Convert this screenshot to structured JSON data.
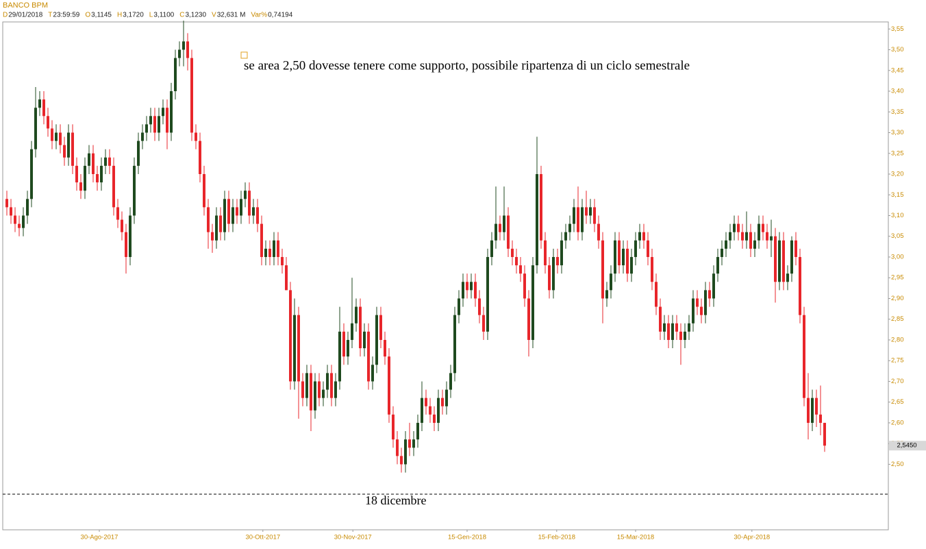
{
  "chart_data": {
    "type": "candlestick",
    "header": {
      "name": "BANCO BPM",
      "fields": [
        {
          "label": "D",
          "value": "29/01/2018"
        },
        {
          "label": "T",
          "value": "23:59:59"
        },
        {
          "label": "O",
          "value": "3,1145"
        },
        {
          "label": "H",
          "value": "3,1720"
        },
        {
          "label": "L",
          "value": "3,1100"
        },
        {
          "label": "C",
          "value": "3,1230"
        },
        {
          "label": "V",
          "value": "32,631 M"
        },
        {
          "label": "Var%",
          "value": "0,74194"
        }
      ]
    },
    "annotations": {
      "note": "se area 2,50 dovesse tenere come supporto, possibile ripartenza di un ciclo semestrale",
      "support": "18 dicembre"
    },
    "support_level": 2.428,
    "last_price": {
      "value": 2.545,
      "label": "2,5450"
    },
    "up_color": "#1f4a1f",
    "down_color": "#e8262b",
    "xlim": [
      -1,
      214.5
    ],
    "xticks": [
      {
        "value": 22.5,
        "label": "30-Ago-2017"
      },
      {
        "value": 62.3,
        "label": "30-Ott-2017"
      },
      {
        "value": 84.2,
        "label": "30-Nov-2017"
      },
      {
        "value": 112,
        "label": "15-Gen-2018"
      },
      {
        "value": 133.8,
        "label": "15-Feb-2018"
      },
      {
        "value": 153,
        "label": "15-Mar-2018"
      },
      {
        "value": 181.3,
        "label": "30-Apr-2018"
      }
    ],
    "ylim": [
      2.342,
      3.567
    ],
    "yticks": [
      {
        "value": 2.5,
        "label": "2,50"
      },
      {
        "value": 2.55,
        "label": "2,55"
      },
      {
        "value": 2.6,
        "label": "2,60"
      },
      {
        "value": 2.65,
        "label": "2,65"
      },
      {
        "value": 2.7,
        "label": "2,70"
      },
      {
        "value": 2.75,
        "label": "2,75"
      },
      {
        "value": 2.8,
        "label": "2,80"
      },
      {
        "value": 2.85,
        "label": "2,85"
      },
      {
        "value": 2.9,
        "label": "2,90"
      },
      {
        "value": 2.95,
        "label": "2,95"
      },
      {
        "value": 3.0,
        "label": "3,00"
      },
      {
        "value": 3.05,
        "label": "3,05"
      },
      {
        "value": 3.1,
        "label": "3,10"
      },
      {
        "value": 3.15,
        "label": "3,15"
      },
      {
        "value": 3.2,
        "label": "3,20"
      },
      {
        "value": 3.25,
        "label": "3,25"
      },
      {
        "value": 3.3,
        "label": "3,30"
      },
      {
        "value": 3.35,
        "label": "3,35"
      },
      {
        "value": 3.4,
        "label": "3,40"
      },
      {
        "value": 3.45,
        "label": "3,45"
      },
      {
        "value": 3.5,
        "label": "3,50"
      },
      {
        "value": 3.55,
        "label": "3,55"
      }
    ],
    "candles": [
      [
        3.14,
        3.16,
        3.1,
        3.12
      ],
      [
        3.12,
        3.14,
        3.08,
        3.1
      ],
      [
        3.1,
        3.12,
        3.06,
        3.08
      ],
      [
        3.08,
        3.1,
        3.05,
        3.07
      ],
      [
        3.07,
        3.12,
        3.05,
        3.1
      ],
      [
        3.1,
        3.16,
        3.08,
        3.14
      ],
      [
        3.14,
        3.28,
        3.12,
        3.26
      ],
      [
        3.26,
        3.41,
        3.24,
        3.36
      ],
      [
        3.36,
        3.4,
        3.34,
        3.38
      ],
      [
        3.38,
        3.4,
        3.32,
        3.34
      ],
      [
        3.34,
        3.36,
        3.29,
        3.31
      ],
      [
        3.31,
        3.33,
        3.26,
        3.28
      ],
      [
        3.28,
        3.32,
        3.26,
        3.3
      ],
      [
        3.3,
        3.32,
        3.25,
        3.27
      ],
      [
        3.27,
        3.29,
        3.22,
        3.24
      ],
      [
        3.24,
        3.32,
        3.22,
        3.3
      ],
      [
        3.3,
        3.32,
        3.2,
        3.22
      ],
      [
        3.22,
        3.24,
        3.16,
        3.18
      ],
      [
        3.18,
        3.2,
        3.14,
        3.16
      ],
      [
        3.16,
        3.24,
        3.14,
        3.22
      ],
      [
        3.22,
        3.27,
        3.2,
        3.25
      ],
      [
        3.25,
        3.27,
        3.18,
        3.2
      ],
      [
        3.2,
        3.22,
        3.16,
        3.18
      ],
      [
        3.18,
        3.24,
        3.16,
        3.22
      ],
      [
        3.22,
        3.26,
        3.2,
        3.24
      ],
      [
        3.24,
        3.26,
        3.2,
        3.22
      ],
      [
        3.22,
        3.24,
        3.1,
        3.12
      ],
      [
        3.12,
        3.14,
        3.07,
        3.09
      ],
      [
        3.09,
        3.11,
        3.04,
        3.06
      ],
      [
        3.06,
        3.08,
        2.96,
        3.0
      ],
      [
        3.0,
        3.12,
        2.98,
        3.1
      ],
      [
        3.1,
        3.24,
        3.08,
        3.22
      ],
      [
        3.22,
        3.3,
        3.2,
        3.28
      ],
      [
        3.28,
        3.32,
        3.26,
        3.3
      ],
      [
        3.3,
        3.34,
        3.28,
        3.32
      ],
      [
        3.32,
        3.36,
        3.3,
        3.34
      ],
      [
        3.34,
        3.36,
        3.28,
        3.3
      ],
      [
        3.3,
        3.36,
        3.28,
        3.34
      ],
      [
        3.34,
        3.38,
        3.32,
        3.36
      ],
      [
        3.36,
        3.38,
        3.26,
        3.3
      ],
      [
        3.3,
        3.42,
        3.28,
        3.4
      ],
      [
        3.4,
        3.5,
        3.38,
        3.48
      ],
      [
        3.48,
        3.52,
        3.46,
        3.5
      ],
      [
        3.5,
        3.57,
        3.46,
        3.52
      ],
      [
        3.52,
        3.54,
        3.45,
        3.48
      ],
      [
        3.48,
        3.5,
        3.28,
        3.3
      ],
      [
        3.3,
        3.32,
        3.26,
        3.28
      ],
      [
        3.28,
        3.3,
        3.18,
        3.2
      ],
      [
        3.2,
        3.22,
        3.1,
        3.12
      ],
      [
        3.12,
        3.14,
        3.02,
        3.06
      ],
      [
        3.06,
        3.08,
        3.01,
        3.04
      ],
      [
        3.04,
        3.12,
        3.02,
        3.1
      ],
      [
        3.1,
        3.12,
        3.04,
        3.06
      ],
      [
        3.06,
        3.16,
        3.04,
        3.14
      ],
      [
        3.14,
        3.16,
        3.06,
        3.08
      ],
      [
        3.08,
        3.14,
        3.06,
        3.12
      ],
      [
        3.12,
        3.14,
        3.08,
        3.1
      ],
      [
        3.1,
        3.16,
        3.08,
        3.14
      ],
      [
        3.14,
        3.18,
        3.12,
        3.16
      ],
      [
        3.16,
        3.18,
        3.08,
        3.1
      ],
      [
        3.1,
        3.14,
        3.08,
        3.12
      ],
      [
        3.12,
        3.14,
        3.06,
        3.08
      ],
      [
        3.08,
        3.1,
        2.98,
        3.0
      ],
      [
        3.0,
        3.04,
        2.98,
        3.02
      ],
      [
        3.02,
        3.04,
        2.98,
        3.0
      ],
      [
        3.0,
        3.06,
        2.98,
        3.04
      ],
      [
        3.04,
        3.06,
        2.98,
        3.0
      ],
      [
        3.0,
        3.02,
        2.96,
        2.98
      ],
      [
        2.98,
        3.0,
        2.92,
        2.92
      ],
      [
        2.92,
        2.94,
        2.68,
        2.7
      ],
      [
        2.7,
        2.9,
        2.68,
        2.86
      ],
      [
        2.86,
        2.88,
        2.61,
        2.7
      ],
      [
        2.7,
        2.72,
        2.64,
        2.66
      ],
      [
        2.66,
        2.74,
        2.64,
        2.72
      ],
      [
        2.72,
        2.74,
        2.58,
        2.63
      ],
      [
        2.63,
        2.72,
        2.61,
        2.7
      ],
      [
        2.7,
        2.72,
        2.64,
        2.66
      ],
      [
        2.66,
        2.7,
        2.64,
        2.68
      ],
      [
        2.68,
        2.74,
        2.66,
        2.72
      ],
      [
        2.72,
        2.74,
        2.64,
        2.66
      ],
      [
        2.66,
        2.72,
        2.64,
        2.7
      ],
      [
        2.7,
        2.88,
        2.68,
        2.82
      ],
      [
        2.82,
        2.84,
        2.74,
        2.76
      ],
      [
        2.76,
        2.82,
        2.74,
        2.8
      ],
      [
        2.8,
        2.95,
        2.78,
        2.84
      ],
      [
        2.84,
        2.9,
        2.82,
        2.88
      ],
      [
        2.88,
        2.9,
        2.76,
        2.78
      ],
      [
        2.78,
        2.84,
        2.76,
        2.82
      ],
      [
        2.82,
        2.84,
        2.68,
        2.7
      ],
      [
        2.7,
        2.76,
        2.68,
        2.74
      ],
      [
        2.74,
        2.88,
        2.72,
        2.86
      ],
      [
        2.86,
        2.88,
        2.78,
        2.8
      ],
      [
        2.8,
        2.82,
        2.74,
        2.76
      ],
      [
        2.76,
        2.78,
        2.6,
        2.62
      ],
      [
        2.62,
        2.64,
        2.54,
        2.56
      ],
      [
        2.56,
        2.58,
        2.5,
        2.52
      ],
      [
        2.52,
        2.54,
        2.48,
        2.5
      ],
      [
        2.5,
        2.58,
        2.48,
        2.56
      ],
      [
        2.56,
        2.6,
        2.52,
        2.54
      ],
      [
        2.54,
        2.58,
        2.52,
        2.56
      ],
      [
        2.56,
        2.62,
        2.54,
        2.6
      ],
      [
        2.6,
        2.7,
        2.58,
        2.66
      ],
      [
        2.66,
        2.68,
        2.62,
        2.64
      ],
      [
        2.64,
        2.66,
        2.6,
        2.62
      ],
      [
        2.62,
        2.64,
        2.58,
        2.6
      ],
      [
        2.6,
        2.68,
        2.58,
        2.66
      ],
      [
        2.66,
        2.68,
        2.62,
        2.64
      ],
      [
        2.64,
        2.7,
        2.62,
        2.68
      ],
      [
        2.68,
        2.74,
        2.66,
        2.72
      ],
      [
        2.72,
        2.88,
        2.7,
        2.86
      ],
      [
        2.86,
        2.92,
        2.84,
        2.9
      ],
      [
        2.9,
        2.96,
        2.88,
        2.94
      ],
      [
        2.94,
        2.96,
        2.9,
        2.92
      ],
      [
        2.92,
        2.96,
        2.9,
        2.94
      ],
      [
        2.94,
        2.96,
        2.88,
        2.9
      ],
      [
        2.9,
        2.92,
        2.84,
        2.86
      ],
      [
        2.86,
        2.88,
        2.8,
        2.82
      ],
      [
        2.82,
        3.02,
        2.8,
        3.0
      ],
      [
        3.0,
        3.06,
        2.98,
        3.04
      ],
      [
        3.04,
        3.17,
        3.02,
        3.08
      ],
      [
        3.08,
        3.1,
        3.04,
        3.06
      ],
      [
        3.06,
        3.17,
        3.04,
        3.1
      ],
      [
        3.1,
        3.12,
        3.0,
        3.02
      ],
      [
        3.02,
        3.04,
        2.98,
        3.0
      ],
      [
        3.0,
        3.02,
        2.96,
        2.98
      ],
      [
        2.98,
        3.0,
        2.94,
        2.96
      ],
      [
        2.96,
        2.98,
        2.88,
        2.9
      ],
      [
        2.9,
        2.92,
        2.76,
        2.8
      ],
      [
        2.8,
        3.0,
        2.78,
        2.98
      ],
      [
        2.98,
        3.29,
        2.96,
        3.2
      ],
      [
        3.2,
        3.22,
        3.02,
        3.04
      ],
      [
        3.04,
        3.06,
        2.96,
        2.98
      ],
      [
        2.98,
        3.0,
        2.9,
        2.92
      ],
      [
        2.92,
        3.02,
        2.9,
        3.0
      ],
      [
        3.0,
        3.02,
        2.96,
        2.98
      ],
      [
        2.98,
        3.06,
        2.96,
        3.04
      ],
      [
        3.04,
        3.08,
        3.02,
        3.06
      ],
      [
        3.06,
        3.1,
        3.04,
        3.08
      ],
      [
        3.08,
        3.14,
        3.06,
        3.12
      ],
      [
        3.12,
        3.17,
        3.04,
        3.06
      ],
      [
        3.06,
        3.14,
        3.04,
        3.12
      ],
      [
        3.12,
        3.16,
        3.08,
        3.1
      ],
      [
        3.1,
        3.14,
        3.08,
        3.12
      ],
      [
        3.12,
        3.14,
        3.06,
        3.08
      ],
      [
        3.08,
        3.1,
        3.02,
        3.04
      ],
      [
        3.04,
        3.06,
        2.84,
        2.9
      ],
      [
        2.9,
        2.94,
        2.88,
        2.92
      ],
      [
        2.92,
        2.98,
        2.9,
        2.96
      ],
      [
        2.96,
        3.06,
        2.94,
        3.04
      ],
      [
        3.04,
        3.06,
        2.96,
        2.98
      ],
      [
        2.98,
        3.04,
        2.96,
        3.02
      ],
      [
        3.02,
        3.04,
        2.94,
        2.96
      ],
      [
        2.96,
        3.02,
        2.94,
        3.0
      ],
      [
        3.0,
        3.06,
        2.98,
        3.04
      ],
      [
        3.04,
        3.08,
        3.02,
        3.06
      ],
      [
        3.06,
        3.08,
        3.02,
        3.04
      ],
      [
        3.04,
        3.06,
        2.98,
        3.0
      ],
      [
        3.0,
        3.02,
        2.92,
        2.94
      ],
      [
        2.94,
        2.96,
        2.86,
        2.88
      ],
      [
        2.88,
        2.9,
        2.8,
        2.82
      ],
      [
        2.82,
        2.86,
        2.8,
        2.84
      ],
      [
        2.84,
        2.86,
        2.78,
        2.8
      ],
      [
        2.8,
        2.86,
        2.78,
        2.84
      ],
      [
        2.84,
        2.86,
        2.8,
        2.82
      ],
      [
        2.82,
        2.84,
        2.74,
        2.8
      ],
      [
        2.8,
        2.84,
        2.78,
        2.82
      ],
      [
        2.82,
        2.86,
        2.8,
        2.84
      ],
      [
        2.84,
        2.92,
        2.82,
        2.9
      ],
      [
        2.9,
        2.92,
        2.86,
        2.88
      ],
      [
        2.88,
        2.9,
        2.84,
        2.86
      ],
      [
        2.86,
        2.94,
        2.84,
        2.92
      ],
      [
        2.92,
        2.94,
        2.88,
        2.9
      ],
      [
        2.9,
        2.98,
        2.88,
        2.96
      ],
      [
        2.96,
        3.02,
        2.94,
        3.0
      ],
      [
        3.0,
        3.04,
        2.98,
        3.02
      ],
      [
        3.02,
        3.06,
        3.0,
        3.04
      ],
      [
        3.04,
        3.08,
        3.02,
        3.06
      ],
      [
        3.06,
        3.1,
        3.04,
        3.08
      ],
      [
        3.08,
        3.1,
        3.04,
        3.06
      ],
      [
        3.06,
        3.08,
        3.02,
        3.04
      ],
      [
        3.04,
        3.11,
        3.02,
        3.06
      ],
      [
        3.06,
        3.08,
        3.0,
        3.02
      ],
      [
        3.02,
        3.06,
        3.0,
        3.04
      ],
      [
        3.04,
        3.1,
        3.02,
        3.08
      ],
      [
        3.08,
        3.1,
        3.04,
        3.06
      ],
      [
        3.06,
        3.08,
        3.02,
        3.04
      ],
      [
        3.04,
        3.09,
        3.0,
        3.05
      ],
      [
        3.05,
        3.07,
        2.89,
        2.94
      ],
      [
        2.94,
        3.06,
        2.92,
        3.04
      ],
      [
        3.04,
        3.06,
        2.92,
        2.94
      ],
      [
        2.94,
        2.98,
        2.92,
        2.96
      ],
      [
        2.96,
        3.05,
        2.94,
        3.04
      ],
      [
        3.04,
        3.06,
        2.98,
        3.0
      ],
      [
        3.0,
        3.02,
        2.84,
        2.86
      ],
      [
        2.86,
        2.88,
        2.64,
        2.66
      ],
      [
        2.66,
        2.72,
        2.56,
        2.6
      ],
      [
        2.6,
        2.68,
        2.58,
        2.66
      ],
      [
        2.66,
        2.68,
        2.59,
        2.62
      ],
      [
        2.62,
        2.69,
        2.57,
        2.6
      ],
      [
        2.6,
        2.6,
        2.53,
        2.545
      ]
    ]
  }
}
